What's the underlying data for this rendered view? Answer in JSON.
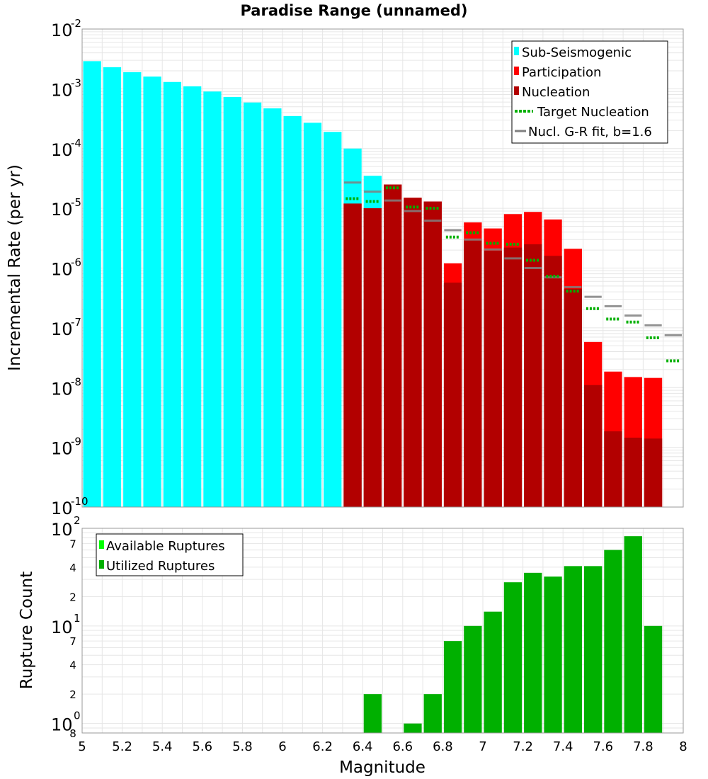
{
  "colors": {
    "sub_seismogenic": "#00ffff",
    "participation": "#ff0000",
    "nucleation": "#b20000",
    "target_nucleation": "#00b000",
    "gr_fit": "#808080",
    "available": "#00ff00",
    "utilized": "#00b000",
    "grid": "#e6e6e6"
  },
  "chart_data": [
    {
      "type": "bar",
      "title": "Paradise Range (unnamed)",
      "xlabel": "Magnitude",
      "ylabel": "Incremental Rate (per yr)",
      "yscale": "log",
      "xlim": [
        5,
        8
      ],
      "ylim": [
        1e-10,
        0.01
      ],
      "y_ticks": [
        {
          "base": "10",
          "exp": "-2",
          "value": 0.01
        },
        {
          "base": "10",
          "exp": "-3",
          "value": 0.001
        },
        {
          "base": "10",
          "exp": "-4",
          "value": 0.0001
        },
        {
          "base": "10",
          "exp": "-5",
          "value": 1e-05
        },
        {
          "base": "10",
          "exp": "-6",
          "value": 1e-06
        },
        {
          "base": "10",
          "exp": "-7",
          "value": 1e-07
        },
        {
          "base": "10",
          "exp": "-8",
          "value": 1e-08
        },
        {
          "base": "10",
          "exp": "-9",
          "value": 1e-09
        },
        {
          "base": "10",
          "exp": "-10",
          "value": 1e-10
        }
      ],
      "legend": {
        "position": "top-right",
        "entries": [
          "Sub-Seismogenic",
          "Participation",
          "Nucleation",
          "Target Nucleation",
          "Nucl. G-R fit, b=1.6"
        ]
      },
      "bin_width": 0.1,
      "series": [
        {
          "name": "Sub-Seismogenic",
          "x": [
            5.05,
            5.15,
            5.25,
            5.35,
            5.45,
            5.55,
            5.65,
            5.75,
            5.85,
            5.95,
            6.05,
            6.15,
            6.25,
            6.35,
            6.45
          ],
          "values": [
            0.0029,
            0.0023,
            0.0019,
            0.0016,
            0.0013,
            0.0011,
            0.0009,
            0.00073,
            0.00059,
            0.00047,
            0.00035,
            0.00027,
            0.00019,
            0.0001,
            3.5e-05
          ]
        },
        {
          "name": "Participation",
          "x": [
            6.35,
            6.45,
            6.55,
            6.65,
            6.75,
            6.85,
            6.95,
            7.05,
            7.15,
            7.25,
            7.35,
            7.45,
            7.55,
            7.65,
            7.75,
            7.85
          ],
          "values": [
            1.2e-05,
            1e-05,
            2.5e-05,
            1.5e-05,
            1.3e-05,
            1.2e-06,
            5.8e-06,
            4.6e-06,
            8e-06,
            8.7e-06,
            6.5e-06,
            2.1e-06,
            5.8e-08,
            1.85e-08,
            1.5e-08,
            1.45e-08
          ]
        },
        {
          "name": "Nucleation",
          "x": [
            6.35,
            6.45,
            6.55,
            6.65,
            6.75,
            6.85,
            6.95,
            7.05,
            7.15,
            7.25,
            7.35,
            7.45,
            7.55,
            7.65,
            7.75,
            7.85
          ],
          "values": [
            1.2e-05,
            1e-05,
            2.5e-05,
            1.5e-05,
            1.3e-05,
            5.7e-07,
            2.9e-06,
            1.95e-06,
            2.2e-06,
            2.5e-06,
            1.6e-06,
            4.5e-07,
            1.1e-08,
            1.85e-09,
            1.45e-09,
            1.4e-09
          ]
        },
        {
          "name": "Target Nucleation",
          "x": [
            6.35,
            6.45,
            6.55,
            6.65,
            6.75,
            6.85,
            6.95,
            7.05,
            7.15,
            7.25,
            7.35,
            7.45,
            7.55,
            7.65,
            7.75,
            7.85,
            7.95
          ],
          "values": [
            1.45e-05,
            1.3e-05,
            2.2e-05,
            1.05e-05,
            1e-05,
            3.3e-06,
            3.9e-06,
            2.6e-06,
            2.5e-06,
            1.35e-06,
            7.3e-07,
            4.1e-07,
            2.1e-07,
            1.4e-07,
            1.25e-07,
            6.8e-08,
            2.8e-08
          ]
        },
        {
          "name": "Nucl. G-R fit, b=1.6",
          "x": [
            6.35,
            6.45,
            6.55,
            6.65,
            6.75,
            6.85,
            6.95,
            7.05,
            7.15,
            7.25,
            7.35,
            7.45,
            7.55,
            7.65,
            7.75,
            7.85,
            7.95
          ],
          "values": [
            2.7e-05,
            1.9e-05,
            1.35e-05,
            9e-06,
            6.2e-06,
            4.3e-06,
            3e-06,
            2.05e-06,
            1.45e-06,
            1e-06,
            7e-07,
            4.8e-07,
            3.3e-07,
            2.3e-07,
            1.6e-07,
            1.1e-07,
            7.5e-08
          ]
        }
      ]
    },
    {
      "type": "bar",
      "xlabel": "Magnitude",
      "ylabel": "Rupture Count",
      "yscale": "log",
      "xlim": [
        5,
        8
      ],
      "ylim": [
        0.8,
        100
      ],
      "x_ticks": [
        "5",
        "5.2",
        "5.4",
        "5.6",
        "5.8",
        "6",
        "6.2",
        "6.4",
        "6.6",
        "6.8",
        "7",
        "7.2",
        "7.4",
        "7.6",
        "7.8",
        "8"
      ],
      "y_ticks": [
        {
          "base": "10",
          "exp": "2",
          "value": 100
        },
        {
          "base": "10",
          "exp": "1",
          "value": 10
        },
        {
          "base": "10",
          "exp": "0",
          "value": 1
        }
      ],
      "y_minor_ticks": [
        {
          "label": "7",
          "value": 70
        },
        {
          "label": "4",
          "value": 40
        },
        {
          "label": "2",
          "value": 20
        },
        {
          "label": "7",
          "value": 7
        },
        {
          "label": "4",
          "value": 4
        },
        {
          "label": "2",
          "value": 2
        },
        {
          "label": "8",
          "value": 0.8
        }
      ],
      "legend": {
        "position": "top-left",
        "entries": [
          "Available Ruptures",
          "Utilized Ruptures"
        ]
      },
      "bin_width": 0.1,
      "series": [
        {
          "name": "Utilized Ruptures",
          "x": [
            6.45,
            6.65,
            6.75,
            6.85,
            6.95,
            7.05,
            7.15,
            7.25,
            7.35,
            7.45,
            7.55,
            7.65,
            7.75,
            7.85
          ],
          "values": [
            2,
            1,
            2,
            7,
            10,
            14,
            28,
            35,
            32,
            41,
            41,
            60,
            83,
            10
          ]
        }
      ]
    }
  ]
}
